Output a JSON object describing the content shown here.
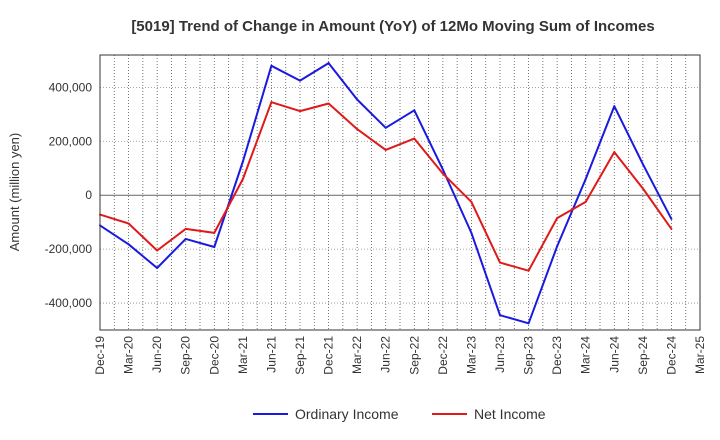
{
  "chart_data": {
    "type": "line",
    "title": "[5019]  Trend of Change in Amount (YoY) of 12Mo Moving Sum of Incomes",
    "ylabel": "Amount (million yen)",
    "xlabel": "",
    "ylim": [
      -500000,
      520000
    ],
    "yticks": [
      {
        "value": 400000,
        "label": "400,000"
      },
      {
        "value": 200000,
        "label": "200,000"
      },
      {
        "value": 0,
        "label": "0"
      },
      {
        "value": -200000,
        "label": "-200,000"
      },
      {
        "value": -400000,
        "label": "-400,000"
      }
    ],
    "categories": [
      "Dec-19",
      "Mar-20",
      "Jun-20",
      "Sep-20",
      "Dec-20",
      "Mar-21",
      "Jun-21",
      "Sep-21",
      "Dec-21",
      "Mar-22",
      "Jun-22",
      "Sep-22",
      "Dec-22",
      "Mar-23",
      "Jun-23",
      "Sep-23",
      "Dec-23",
      "Mar-24",
      "Jun-24",
      "Sep-24",
      "Dec-24",
      "Mar-25"
    ],
    "grid": true,
    "legend_position": "bottom",
    "series": [
      {
        "name": "Ordinary Income",
        "color": "#1a1adf",
        "values": [
          -112000,
          -182000,
          -270000,
          -162000,
          -192000,
          125000,
          480000,
          425000,
          490000,
          355000,
          250000,
          315000,
          95000,
          -140000,
          -445000,
          -475000,
          -190000,
          60000,
          330000,
          115000,
          -88000,
          null
        ]
      },
      {
        "name": "Net Income",
        "color": "#df1a1a",
        "values": [
          -72000,
          -105000,
          -205000,
          -125000,
          -140000,
          60000,
          345000,
          312000,
          340000,
          245000,
          168000,
          210000,
          80000,
          -25000,
          -250000,
          -280000,
          -85000,
          -25000,
          160000,
          25000,
          -125000,
          null
        ]
      }
    ]
  }
}
